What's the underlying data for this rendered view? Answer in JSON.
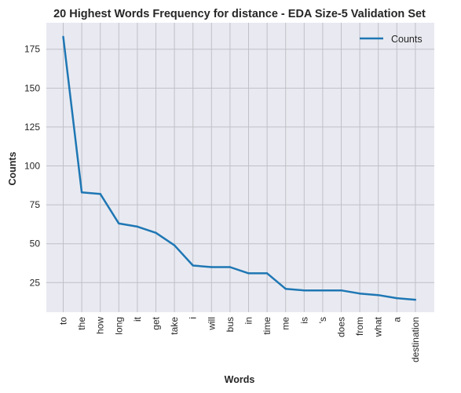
{
  "chart_data": {
    "type": "line",
    "title": "20 Highest Words Frequency for distance - EDA Size-5 Validation Set",
    "xlabel": "Words",
    "ylabel": "Counts",
    "categories": [
      "to",
      "the",
      "how",
      "long",
      "it",
      "get",
      "take",
      "i",
      "will",
      "bus",
      "in",
      "time",
      "me",
      "is",
      "'s",
      "does",
      "from",
      "what",
      "a",
      "destination"
    ],
    "series": [
      {
        "name": "Counts",
        "values": [
          183,
          83,
          82,
          63,
          61,
          57,
          49,
          36,
          35,
          35,
          31,
          31,
          21,
          20,
          20,
          20,
          18,
          17,
          15,
          14
        ],
        "color": "#1f77b4"
      }
    ],
    "yticks": [
      25,
      50,
      75,
      100,
      125,
      150,
      175
    ],
    "ylim": [
      6,
      192
    ],
    "grid": true,
    "legend_position": "top-right",
    "colors": {
      "plot_background": "#e9eaf1",
      "grid": "#c0c0c8",
      "line": "#1f77b4"
    }
  }
}
